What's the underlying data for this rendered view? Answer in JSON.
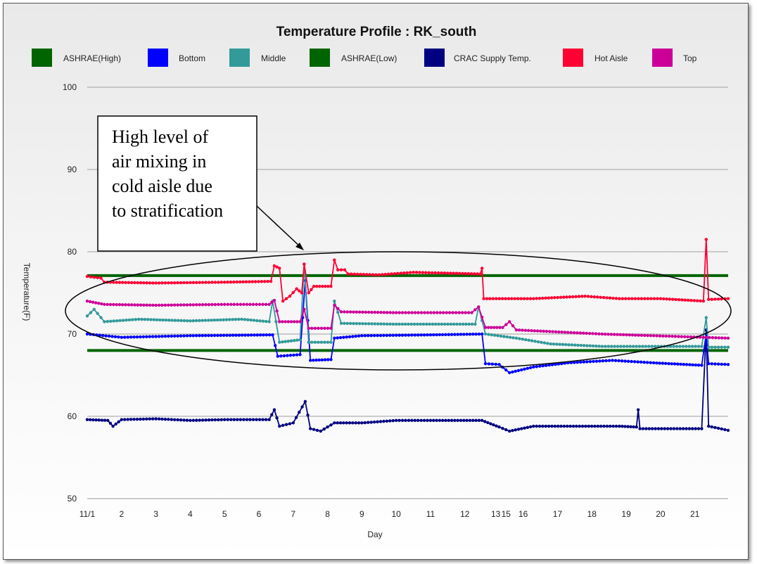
{
  "chart_data": {
    "type": "line",
    "title": "Temperature Profile : RK_south",
    "xlabel": "Day",
    "ylabel": "Temperature(F)",
    "ylim": [
      50,
      100
    ],
    "yticks": [
      50,
      60,
      70,
      80,
      90,
      100
    ],
    "xlim": [
      0,
      18.67
    ],
    "xtick_positions": [
      0,
      1,
      2,
      3,
      4,
      5,
      6,
      7,
      8,
      9,
      10,
      11,
      11.9,
      12.2,
      12.7,
      13.7,
      14.7,
      15.7,
      16.7,
      17.7
    ],
    "xtick_labels": [
      "11/1",
      "2",
      "3",
      "4",
      "5",
      "6",
      "7",
      "8",
      "9",
      "10",
      "11",
      "12",
      "13",
      "15",
      "16",
      "17",
      "18",
      "19",
      "20",
      "21"
    ],
    "grid": true,
    "legend_position": "top",
    "annotation": [
      "High level of",
      "air mixing in",
      "cold aisle due",
      "to stratification"
    ],
    "series": [
      {
        "name": "ASHRAE(High)",
        "color": "#006400",
        "markers": false,
        "width": 4,
        "points": [
          [
            0,
            77.1
          ],
          [
            18.67,
            77.1
          ]
        ]
      },
      {
        "name": "Bottom",
        "color": "#0000ff",
        "markers": true,
        "points": [
          [
            0,
            70
          ],
          [
            1,
            69.6
          ],
          [
            3,
            69.8
          ],
          [
            5.4,
            69.9
          ],
          [
            5.55,
            67.3
          ],
          [
            6.2,
            67.5
          ],
          [
            6.35,
            76.5
          ],
          [
            6.5,
            66.8
          ],
          [
            7.1,
            66.9
          ],
          [
            7.2,
            69.5
          ],
          [
            8,
            69.8
          ],
          [
            10,
            69.9
          ],
          [
            11.5,
            70
          ],
          [
            11.6,
            66.4
          ],
          [
            12,
            66.3
          ],
          [
            12.3,
            65.3
          ],
          [
            13,
            66
          ],
          [
            14,
            66.5
          ],
          [
            15.3,
            66.8
          ],
          [
            16.5,
            66.5
          ],
          [
            17.9,
            66.2
          ],
          [
            18.03,
            70
          ],
          [
            18.1,
            66.4
          ],
          [
            18.67,
            66.3
          ]
        ]
      },
      {
        "name": "Middle",
        "color": "#339999",
        "markers": true,
        "points": [
          [
            0,
            72.2
          ],
          [
            0.2,
            73
          ],
          [
            0.5,
            71.5
          ],
          [
            1.5,
            71.8
          ],
          [
            3,
            71.6
          ],
          [
            4.5,
            71.8
          ],
          [
            5.3,
            71.5
          ],
          [
            5.4,
            74
          ],
          [
            5.6,
            69
          ],
          [
            6.2,
            69.3
          ],
          [
            6.32,
            78.5
          ],
          [
            6.45,
            69
          ],
          [
            7.1,
            69
          ],
          [
            7.2,
            74
          ],
          [
            7.4,
            71.3
          ],
          [
            9,
            71.2
          ],
          [
            11.3,
            71.2
          ],
          [
            11.4,
            73.3
          ],
          [
            11.6,
            70
          ],
          [
            12.5,
            69.5
          ],
          [
            13.5,
            68.8
          ],
          [
            15,
            68.5
          ],
          [
            17.9,
            68.5
          ],
          [
            18.03,
            72
          ],
          [
            18.1,
            68.4
          ],
          [
            18.67,
            68.4
          ]
        ]
      },
      {
        "name": "ASHRAE(Low)",
        "color": "#006400",
        "markers": false,
        "width": 4,
        "points": [
          [
            0,
            68
          ],
          [
            18.67,
            68
          ]
        ]
      },
      {
        "name": "CRAC Supply Temp.",
        "color": "#000080",
        "markers": true,
        "points": [
          [
            0,
            59.6
          ],
          [
            0.6,
            59.5
          ],
          [
            0.75,
            58.8
          ],
          [
            1,
            59.6
          ],
          [
            2,
            59.7
          ],
          [
            3,
            59.5
          ],
          [
            4,
            59.6
          ],
          [
            5.3,
            59.6
          ],
          [
            5.45,
            60.8
          ],
          [
            5.6,
            58.8
          ],
          [
            6,
            59.2
          ],
          [
            6.35,
            61.8
          ],
          [
            6.5,
            58.5
          ],
          [
            6.8,
            58.2
          ],
          [
            7.2,
            59.2
          ],
          [
            8,
            59.2
          ],
          [
            9,
            59.5
          ],
          [
            10,
            59.5
          ],
          [
            11.5,
            59.5
          ],
          [
            12,
            58.7
          ],
          [
            12.3,
            58.2
          ],
          [
            13,
            58.8
          ],
          [
            15.5,
            58.8
          ],
          [
            16.0,
            58.7
          ],
          [
            16.05,
            60.8
          ],
          [
            16.1,
            58.5
          ],
          [
            17.9,
            58.5
          ],
          [
            18.03,
            70.5
          ],
          [
            18.1,
            58.8
          ],
          [
            18.67,
            58.3
          ]
        ]
      },
      {
        "name": "Hot Aisle",
        "color": "#ff0033",
        "markers": true,
        "points": [
          [
            0,
            77
          ],
          [
            0.4,
            76.8
          ],
          [
            0.5,
            76.3
          ],
          [
            2,
            76.2
          ],
          [
            4,
            76.3
          ],
          [
            5.35,
            76.4
          ],
          [
            5.45,
            78.3
          ],
          [
            5.6,
            78
          ],
          [
            5.7,
            74
          ],
          [
            5.9,
            74.6
          ],
          [
            6.1,
            75.5
          ],
          [
            6.25,
            75
          ],
          [
            6.32,
            78.5
          ],
          [
            6.45,
            75
          ],
          [
            6.6,
            75.8
          ],
          [
            7.1,
            75.8
          ],
          [
            7.2,
            79
          ],
          [
            7.3,
            77.8
          ],
          [
            7.5,
            77.8
          ],
          [
            7.6,
            77.3
          ],
          [
            8.5,
            77.2
          ],
          [
            9.5,
            77.5
          ],
          [
            10.5,
            77.4
          ],
          [
            11.45,
            77.3
          ],
          [
            11.5,
            78
          ],
          [
            11.55,
            74.3
          ],
          [
            13,
            74.3
          ],
          [
            14.5,
            74.6
          ],
          [
            15.5,
            74.3
          ],
          [
            16.7,
            74.3
          ],
          [
            17.95,
            74
          ],
          [
            18.03,
            81.5
          ],
          [
            18.1,
            74.2
          ],
          [
            18.67,
            74.3
          ]
        ]
      },
      {
        "name": "Top",
        "color": "#cc0099",
        "markers": true,
        "points": [
          [
            0,
            74
          ],
          [
            0.5,
            73.6
          ],
          [
            2,
            73.5
          ],
          [
            4,
            73.6
          ],
          [
            5.3,
            73.6
          ],
          [
            5.45,
            74.1
          ],
          [
            5.6,
            71.5
          ],
          [
            6.2,
            71.5
          ],
          [
            6.32,
            73
          ],
          [
            6.45,
            70.7
          ],
          [
            7.1,
            70.7
          ],
          [
            7.2,
            73.5
          ],
          [
            7.4,
            72.7
          ],
          [
            9,
            72.6
          ],
          [
            11.2,
            72.6
          ],
          [
            11.4,
            73.3
          ],
          [
            11.6,
            70.8
          ],
          [
            12.1,
            70.8
          ],
          [
            12.3,
            71.5
          ],
          [
            12.5,
            70.5
          ],
          [
            14,
            70.2
          ],
          [
            15,
            70
          ],
          [
            16.5,
            69.8
          ],
          [
            18.67,
            69.5
          ]
        ]
      }
    ]
  }
}
